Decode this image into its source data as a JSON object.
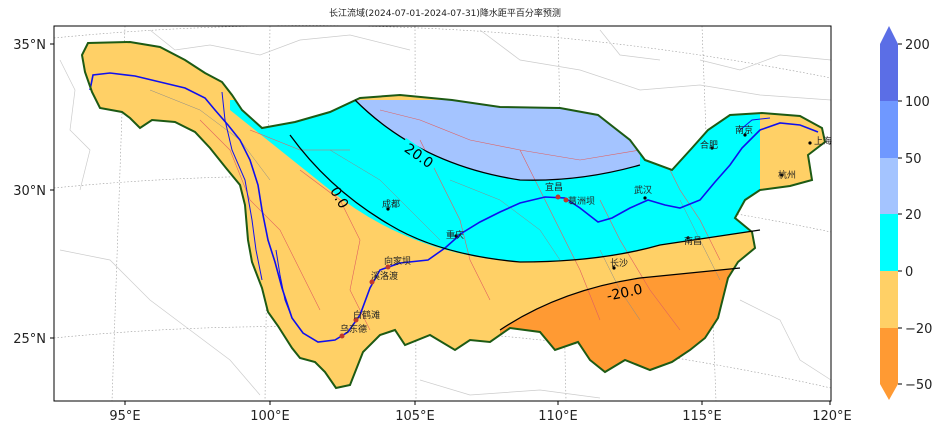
{
  "title": "长江流域(2024-07-01-2024-07-31)降水距平百分率预测",
  "axes": {
    "lat_ticks": [
      "35°N",
      "30°N",
      "25°N"
    ],
    "lon_ticks": [
      "95°E",
      "100°E",
      "105°E",
      "110°E",
      "115°E",
      "120°E"
    ]
  },
  "colorbar": {
    "tick_labels": [
      "200",
      "100",
      "50",
      "20",
      "0",
      "−20",
      "−50"
    ],
    "colors": [
      "#5b6ee6",
      "#6f98ff",
      "#a4c4ff",
      "#00ffff",
      "#ffd066",
      "#ff9a33"
    ]
  },
  "contours": {
    "c20": "20.0",
    "c0": "0.0",
    "cm20": "-20.0"
  },
  "cities": {
    "chengdu": "成都",
    "chongqing": "重庆",
    "yichang": "宜昌",
    "gezhouba": "葛洲坝",
    "wuhan": "武汉",
    "nanchang": "南昌",
    "changsha": "长沙",
    "hefei": "合肥",
    "nanjing": "南京",
    "hangzhou": "杭州",
    "shanghai": "上海",
    "xiangjiaba": "向家坝",
    "xiluodu": "溪洛渡",
    "baihetan": "白鹤滩",
    "wudongde": "乌东德"
  }
}
